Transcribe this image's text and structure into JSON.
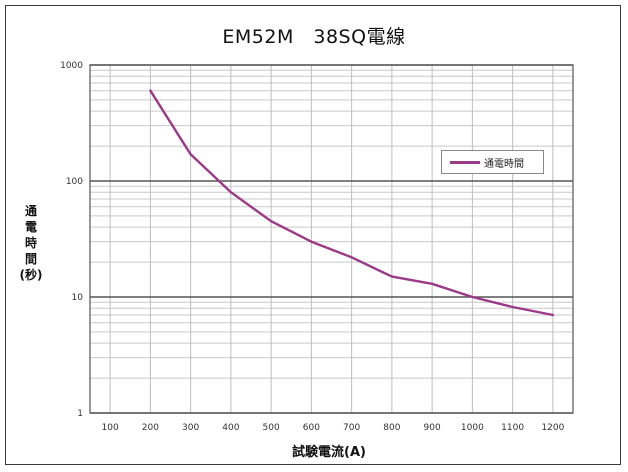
{
  "chart_data": {
    "type": "line",
    "title": "EM52M　38SQ電線",
    "xlabel": "試験電流(A)",
    "ylabel": "通電時間(秒)",
    "yscale": "log",
    "xlim": [
      50,
      1250
    ],
    "ylim": [
      1,
      1000
    ],
    "x_ticks": [
      "100",
      "200",
      "300",
      "400",
      "500",
      "600",
      "700",
      "800",
      "900",
      "1000",
      "1100",
      "1200"
    ],
    "y_ticks": [
      "1",
      "10",
      "100",
      "1000"
    ],
    "grid": true,
    "legend_position": "top-right",
    "series": [
      {
        "name": "通電時間",
        "color": "#9b3a88",
        "x": [
          200,
          300,
          400,
          500,
          600,
          700,
          800,
          900,
          1000,
          1100,
          1200
        ],
        "y": [
          600,
          170,
          80,
          45,
          30,
          22,
          15,
          13,
          10,
          8.2,
          7
        ]
      }
    ]
  }
}
